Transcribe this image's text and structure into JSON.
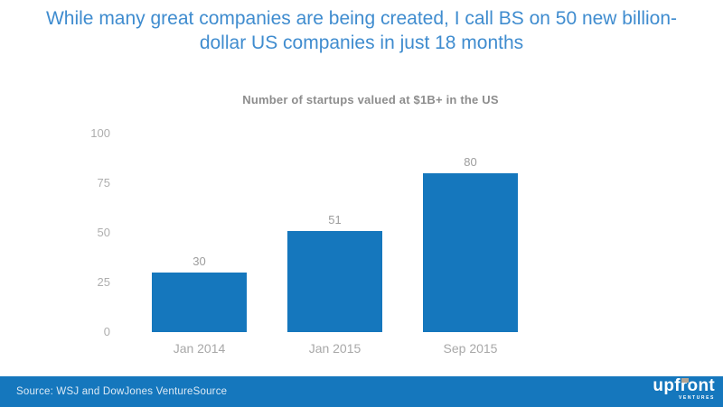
{
  "slide": {
    "title_lines": [
      "While many great companies are being created, I call BS on 50 new billion-",
      "dollar US companies in just 18 months"
    ],
    "title_color": "#3f8ccf"
  },
  "chart_data": {
    "type": "bar",
    "title": "Number of startups valued at $1B+ in the US",
    "categories": [
      "Jan 2014",
      "Jan 2015",
      "Sep 2015"
    ],
    "values": [
      30,
      51,
      80
    ],
    "yticks": [
      100,
      75,
      50,
      25,
      0
    ],
    "ylim": [
      0,
      100
    ],
    "grid": false,
    "legend_position": "none",
    "bar_color": "#1577bd",
    "xlabel": "",
    "ylabel": ""
  },
  "footer": {
    "source_text": "Source: WSJ and DowJones VentureSource",
    "background_color": "#1577bd",
    "logo": {
      "word": "upfront",
      "sub": "VENTURES"
    }
  }
}
